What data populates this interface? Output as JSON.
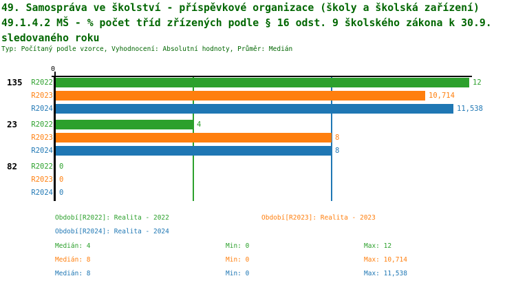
{
  "title": {
    "line1": "49. Samospráva ve školství - příspěvkové organizace (školy a školská zařízení)",
    "line2": "49.1.4.2 MŠ - % počet tříd zřízených podle § 16 odst. 9 školského zákona k 30.9.",
    "line3": "sledovaného roku",
    "meta": "Typ: Počítaný podle vzorce, Vyhodnocení: Absolutní hodnoty, Průměr: Medián"
  },
  "axis": {
    "origin_tick": "0"
  },
  "colors": {
    "title_green": "#006600",
    "series_green": "#2ca02c",
    "series_orange": "#ff7f0e",
    "series_blue": "#1f77b4",
    "axis": "#000000"
  },
  "chart_data": {
    "type": "bar",
    "orientation": "horizontal",
    "title": "49.1.4.2 MŠ - % počet tříd zřízených podle § 16 odst. 9 školského zákona k 30.9. sledovaného roku",
    "categories": [
      "135",
      "23",
      "82"
    ],
    "series": [
      {
        "name": "R2022",
        "label": "Období[R2022]: Realita - 2022",
        "color": "#2ca02c",
        "values": [
          12,
          4,
          0
        ]
      },
      {
        "name": "R2023",
        "label": "Období[R2023]: Realita - 2023",
        "color": "#ff7f0e",
        "values": [
          10.714,
          8,
          0
        ]
      },
      {
        "name": "R2024",
        "label": "Období[R2024]: Realita - 2024",
        "color": "#1f77b4",
        "values": [
          11.538,
          8,
          0
        ]
      }
    ],
    "xlim": [
      0,
      12
    ],
    "x_ticks": [
      "0"
    ],
    "grid": false,
    "legend_position": "bottom",
    "median_lines": [
      {
        "value": 4,
        "color": "#2ca02c"
      },
      {
        "value": 8,
        "color": "#1f77b4"
      }
    ],
    "stats": [
      {
        "series": "R2022",
        "median": 4,
        "min": 0,
        "max": 12
      },
      {
        "series": "R2023",
        "median": 8,
        "min": 0,
        "max": 10.714
      },
      {
        "series": "R2024",
        "median": 8,
        "min": 0,
        "max": 11.538
      }
    ]
  },
  "groups": [
    {
      "label": "135",
      "rows": [
        {
          "series": "R2022",
          "value": 12,
          "display": "12"
        },
        {
          "series": "R2023",
          "value": 10.714,
          "display": "10,714"
        },
        {
          "series": "R2024",
          "value": 11.538,
          "display": "11,538"
        }
      ]
    },
    {
      "label": "23",
      "rows": [
        {
          "series": "R2022",
          "value": 4,
          "display": "4"
        },
        {
          "series": "R2023",
          "value": 8,
          "display": "8"
        },
        {
          "series": "R2024",
          "value": 8,
          "display": "8"
        }
      ]
    },
    {
      "label": "82",
      "rows": [
        {
          "series": "R2022",
          "value": 0,
          "display": "0"
        },
        {
          "series": "R2023",
          "value": 0,
          "display": "0"
        },
        {
          "series": "R2024",
          "value": 0,
          "display": "0"
        }
      ]
    }
  ],
  "legend": {
    "item_2022": "Období[R2022]: Realita - 2022",
    "item_2023": "Období[R2023]: Realita - 2023",
    "item_2024": "Období[R2024]: Realita - 2024"
  },
  "stats_text": [
    {
      "median": "Medián: 4",
      "min": "Min: 0",
      "max": "Max: 12"
    },
    {
      "median": "Medián: 8",
      "min": "Min: 0",
      "max": "Max: 10,714"
    },
    {
      "median": "Medián: 8",
      "min": "Min: 0",
      "max": "Max: 11,538"
    }
  ]
}
